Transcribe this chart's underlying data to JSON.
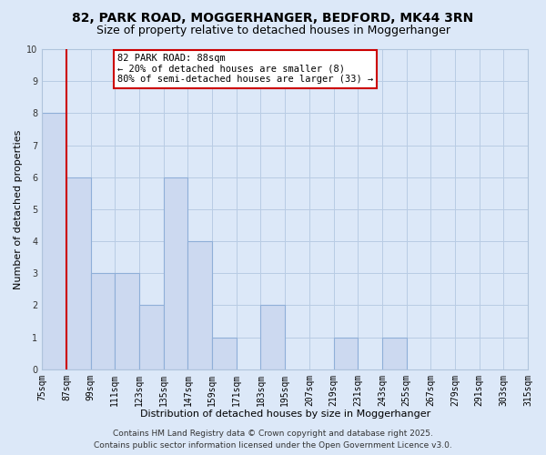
{
  "title": "82, PARK ROAD, MOGGERHANGER, BEDFORD, MK44 3RN",
  "subtitle": "Size of property relative to detached houses in Moggerhanger",
  "xlabel": "Distribution of detached houses by size in Moggerhanger",
  "ylabel": "Number of detached properties",
  "bin_edges": [
    75,
    87,
    99,
    111,
    123,
    135,
    147,
    159,
    171,
    183,
    195,
    207,
    219,
    231,
    243,
    255,
    267,
    279,
    291,
    303,
    315
  ],
  "counts": [
    8,
    6,
    3,
    3,
    2,
    6,
    4,
    1,
    0,
    2,
    0,
    0,
    1,
    0,
    1,
    0,
    0,
    0,
    0,
    0
  ],
  "bar_color": "#ccd9f0",
  "bar_edge_color": "#8fafd8",
  "property_line_x": 87,
  "property_line_color": "#cc0000",
  "annotation_line1": "82 PARK ROAD: 88sqm",
  "annotation_line2": "← 20% of detached houses are smaller (8)",
  "annotation_line3": "80% of semi-detached houses are larger (33) →",
  "ylim": [
    0,
    10
  ],
  "yticks": [
    0,
    1,
    2,
    3,
    4,
    5,
    6,
    7,
    8,
    9,
    10
  ],
  "tick_labels": [
    "75sqm",
    "87sqm",
    "99sqm",
    "111sqm",
    "123sqm",
    "135sqm",
    "147sqm",
    "159sqm",
    "171sqm",
    "183sqm",
    "195sqm",
    "207sqm",
    "219sqm",
    "231sqm",
    "243sqm",
    "255sqm",
    "267sqm",
    "279sqm",
    "291sqm",
    "303sqm",
    "315sqm"
  ],
  "background_color": "#dce8f8",
  "plot_bg_color": "#dce8f8",
  "grid_color": "#b8cce4",
  "footer_line1": "Contains HM Land Registry data © Crown copyright and database right 2025.",
  "footer_line2": "Contains public sector information licensed under the Open Government Licence v3.0.",
  "title_fontsize": 10,
  "subtitle_fontsize": 9,
  "axis_label_fontsize": 8,
  "tick_fontsize": 7,
  "footer_fontsize": 6.5,
  "annotation_fontsize": 7.5
}
